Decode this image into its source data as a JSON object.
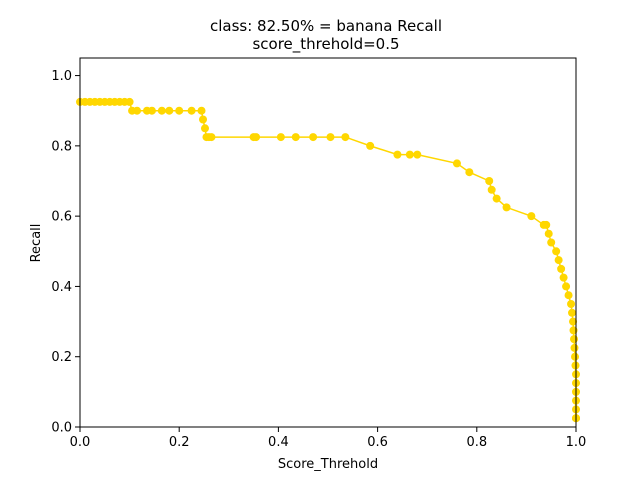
{
  "chart_data": {
    "type": "line",
    "title": "class: 82.50% = banana Recall",
    "subtitle": "score_threhold=0.5",
    "xlabel": "Score_Threhold",
    "ylabel": "Recall",
    "xlim": [
      0.0,
      1.0
    ],
    "ylim": [
      0.0,
      1.05
    ],
    "xticks": [
      "0.0",
      "0.2",
      "0.4",
      "0.6",
      "0.8",
      "1.0"
    ],
    "yticks": [
      "0.0",
      "0.2",
      "0.4",
      "0.6",
      "0.8",
      "1.0"
    ],
    "grid": false,
    "color": "#FFD700",
    "series": [
      {
        "name": "",
        "x": [
          0.0,
          0.01,
          0.02,
          0.03,
          0.04,
          0.05,
          0.06,
          0.07,
          0.08,
          0.09,
          0.1,
          0.105,
          0.115,
          0.135,
          0.145,
          0.165,
          0.18,
          0.2,
          0.225,
          0.245,
          0.248,
          0.252,
          0.255,
          0.26,
          0.265,
          0.35,
          0.355,
          0.405,
          0.435,
          0.47,
          0.505,
          0.535,
          0.585,
          0.64,
          0.665,
          0.68,
          0.76,
          0.785,
          0.825,
          0.83,
          0.84,
          0.86,
          0.91,
          0.935,
          0.94,
          0.945,
          0.95,
          0.96,
          0.965,
          0.97,
          0.975,
          0.98,
          0.985,
          0.99,
          0.992,
          0.994,
          0.995,
          0.996,
          0.997,
          0.998,
          0.999,
          1.0,
          1.0,
          1.0,
          1.0,
          1.0,
          1.0,
          1.0,
          1.0
        ],
        "values": [
          0.925,
          0.925,
          0.925,
          0.925,
          0.925,
          0.925,
          0.925,
          0.925,
          0.925,
          0.925,
          0.925,
          0.9,
          0.9,
          0.9,
          0.9,
          0.9,
          0.9,
          0.9,
          0.9,
          0.9,
          0.875,
          0.85,
          0.825,
          0.825,
          0.825,
          0.825,
          0.825,
          0.825,
          0.825,
          0.825,
          0.825,
          0.825,
          0.8,
          0.775,
          0.775,
          0.775,
          0.75,
          0.725,
          0.7,
          0.675,
          0.65,
          0.625,
          0.6,
          0.575,
          0.575,
          0.55,
          0.525,
          0.5,
          0.475,
          0.45,
          0.425,
          0.4,
          0.375,
          0.35,
          0.325,
          0.3,
          0.275,
          0.25,
          0.225,
          0.2,
          0.175,
          0.15,
          0.125,
          0.1,
          0.075,
          0.05,
          0.025,
          0.025,
          0.025
        ]
      }
    ]
  }
}
